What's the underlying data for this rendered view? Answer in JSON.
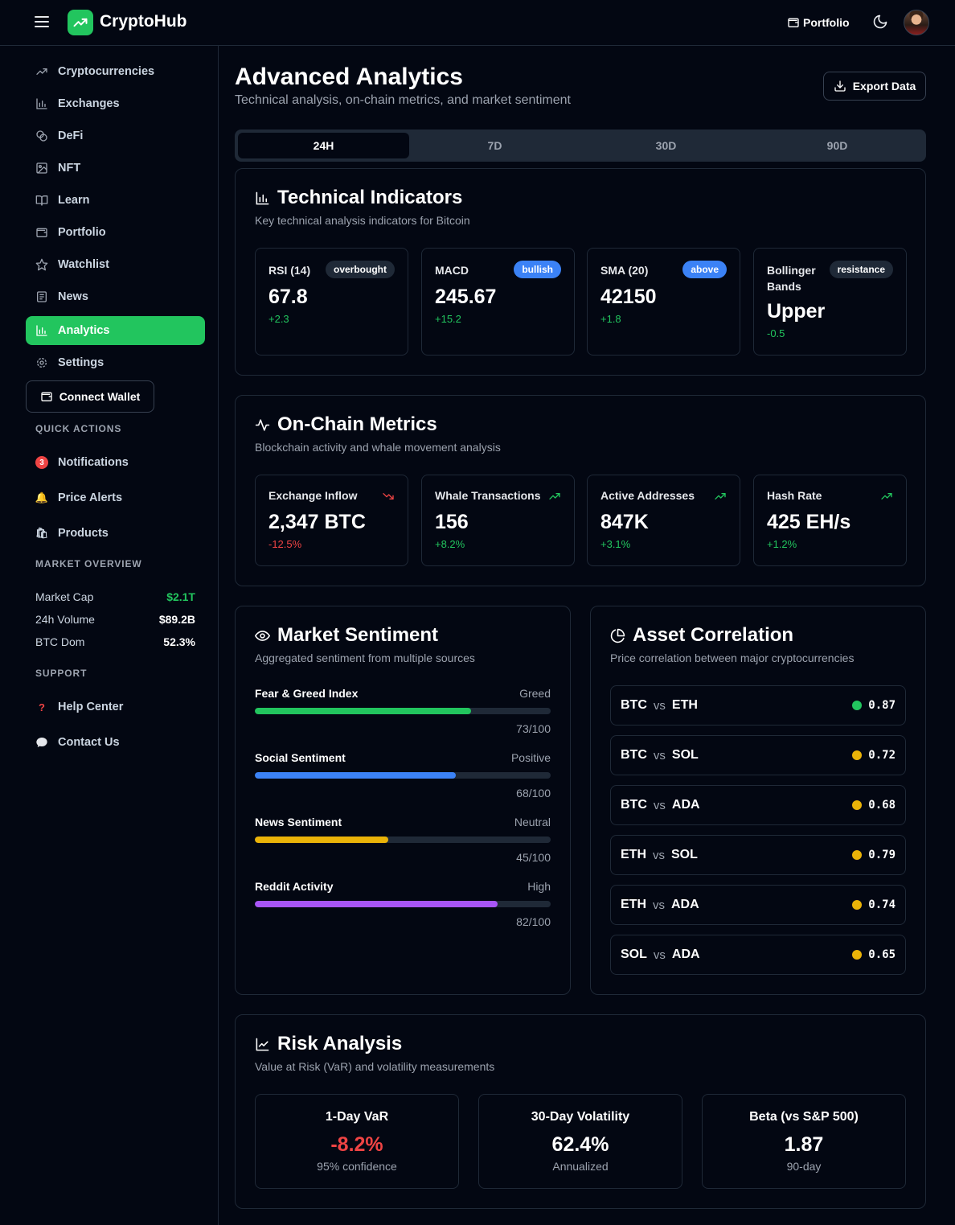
{
  "header": {
    "app_name": "CryptoHub",
    "portfolio_label": "Portfolio"
  },
  "sidebar": {
    "nav": [
      {
        "label": "Cryptocurrencies",
        "icon": "trending-up-icon"
      },
      {
        "label": "Exchanges",
        "icon": "bar-chart-icon"
      },
      {
        "label": "DeFi",
        "icon": "coins-icon"
      },
      {
        "label": "NFT",
        "icon": "image-icon"
      },
      {
        "label": "Learn",
        "icon": "book-icon"
      },
      {
        "label": "Portfolio",
        "icon": "wallet-icon"
      },
      {
        "label": "Watchlist",
        "icon": "star-icon"
      },
      {
        "label": "News",
        "icon": "newspaper-icon"
      },
      {
        "label": "Analytics",
        "icon": "bar-chart-icon",
        "active": true
      },
      {
        "label": "Settings",
        "icon": "gear-icon"
      }
    ],
    "connect_wallet": "Connect Wallet",
    "quick_actions_label": "QUICK ACTIONS",
    "quick_actions": [
      {
        "label": "Notifications",
        "badge": "3"
      },
      {
        "label": "Price Alerts",
        "icon": "bell-icon"
      },
      {
        "label": "Products",
        "icon": "shopping-bag-icon"
      }
    ],
    "market_overview_label": "MARKET OVERVIEW",
    "market_overview": [
      {
        "key": "Market Cap",
        "value": "$2.1T",
        "color": "#22c55e"
      },
      {
        "key": "24h Volume",
        "value": "$89.2B",
        "color": "#ffffff"
      },
      {
        "key": "BTC Dom",
        "value": "52.3%",
        "color": "#ffffff"
      }
    ],
    "support_label": "SUPPORT",
    "support": [
      {
        "label": "Help Center",
        "icon": "question-icon"
      },
      {
        "label": "Contact Us",
        "icon": "chat-bubble-icon"
      }
    ]
  },
  "main": {
    "title": "Advanced Analytics",
    "subtitle": "Technical analysis, on-chain metrics, and market sentiment",
    "export_label": "Export Data",
    "tabs": [
      "24H",
      "7D",
      "30D",
      "90D"
    ],
    "active_tab": "24H"
  },
  "technical": {
    "title": "Technical Indicators",
    "subtitle": "Key technical analysis indicators for Bitcoin",
    "items": [
      {
        "name": "RSI (14)",
        "badge": "overbought",
        "badge_style": "dark",
        "value": "67.8",
        "change": "+2.3"
      },
      {
        "name": "MACD",
        "badge": "bullish",
        "badge_style": "blue",
        "value": "245.67",
        "change": "+15.2"
      },
      {
        "name": "SMA (20)",
        "badge": "above",
        "badge_style": "blue",
        "value": "42150",
        "change": "+1.8"
      },
      {
        "name": "Bollinger Bands",
        "badge": "resistance",
        "badge_style": "dark",
        "value": "Upper",
        "change": "-0.5"
      }
    ]
  },
  "onchain": {
    "title": "On-Chain Metrics",
    "subtitle": "Blockchain activity and whale movement analysis",
    "items": [
      {
        "name": "Exchange Inflow",
        "value": "2,347 BTC",
        "change": "-12.5%",
        "trend": "down"
      },
      {
        "name": "Whale Transactions",
        "value": "156",
        "change": "+8.2%",
        "trend": "up"
      },
      {
        "name": "Active Addresses",
        "value": "847K",
        "change": "+3.1%",
        "trend": "up"
      },
      {
        "name": "Hash Rate",
        "value": "425 EH/s",
        "change": "+1.2%",
        "trend": "up"
      }
    ]
  },
  "sentiment": {
    "title": "Market Sentiment",
    "subtitle": "Aggregated sentiment from multiple sources",
    "items": [
      {
        "label": "Fear & Greed Index",
        "status": "Greed",
        "score": "73/100",
        "fill": 0.73,
        "color": "#22c55e"
      },
      {
        "label": "Social Sentiment",
        "status": "Positive",
        "score": "68/100",
        "fill": 0.68,
        "color": "#3b82f6"
      },
      {
        "label": "News Sentiment",
        "status": "Neutral",
        "score": "45/100",
        "fill": 0.45,
        "color": "#eab308"
      },
      {
        "label": "Reddit Activity",
        "status": "High",
        "score": "82/100",
        "fill": 0.82,
        "color": "#a855f7"
      }
    ]
  },
  "correlation": {
    "title": "Asset Correlation",
    "subtitle": "Price correlation between major cryptocurrencies",
    "vs_label": "vs",
    "items": [
      {
        "a": "BTC",
        "b": "ETH",
        "value": "0.87",
        "dot": "#22c55e"
      },
      {
        "a": "BTC",
        "b": "SOL",
        "value": "0.72",
        "dot": "#eab308"
      },
      {
        "a": "BTC",
        "b": "ADA",
        "value": "0.68",
        "dot": "#eab308"
      },
      {
        "a": "ETH",
        "b": "SOL",
        "value": "0.79",
        "dot": "#eab308"
      },
      {
        "a": "ETH",
        "b": "ADA",
        "value": "0.74",
        "dot": "#eab308"
      },
      {
        "a": "SOL",
        "b": "ADA",
        "value": "0.65",
        "dot": "#eab308"
      }
    ]
  },
  "risk": {
    "title": "Risk Analysis",
    "subtitle": "Value at Risk (VaR) and volatility measurements",
    "items": [
      {
        "label": "1-Day VaR",
        "value": "-8.2%",
        "note": "95% confidence",
        "color": "#ef4444"
      },
      {
        "label": "30-Day Volatility",
        "value": "62.4%",
        "note": "Annualized",
        "color": "#ffffff"
      },
      {
        "label": "Beta (vs S&P 500)",
        "value": "1.87",
        "note": "90-day",
        "color": "#ffffff"
      }
    ]
  },
  "colors": {
    "accent": "#22c55e",
    "positive": "#22c55e",
    "negative": "#ef4444",
    "border": "#1f2937",
    "background": "#030712"
  }
}
